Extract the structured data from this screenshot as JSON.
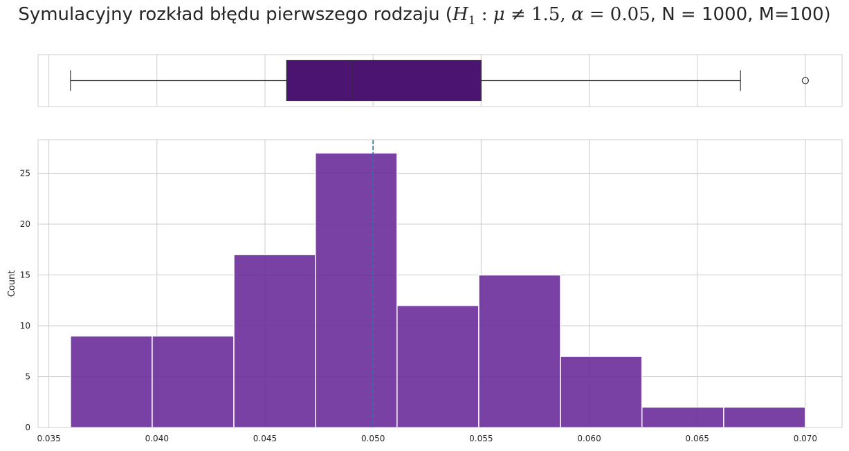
{
  "title": {
    "prefix": "Symulacyjny rozkład błędu pierwszego rodzaju (",
    "h": "H",
    "h_sub": "1",
    "colon": " : ",
    "mu": "μ",
    "neq": " ≠ ",
    "mu0": "1.5",
    "sep": ",  ",
    "alpha": "α",
    "eq": " = ",
    "alpha_val": "0.05",
    "suffix": ", N = 1000, M=100)"
  },
  "colors": {
    "hist_fill": "#6a2c9a",
    "hist_fill_opacity": 0.9,
    "box_fill": "#4a1470",
    "grid": "#cccccc",
    "vline": "#1f77b4",
    "spine": "#cccccc"
  },
  "chart_data": [
    {
      "type": "box",
      "orientation": "horizontal",
      "whisker_low": 0.036,
      "q1": 0.046,
      "median": 0.049,
      "q3": 0.055,
      "whisker_high": 0.067,
      "outliers": [
        0.07
      ],
      "xlim": [
        0.0345,
        0.0717
      ],
      "grid": true
    },
    {
      "type": "histogram",
      "bin_edges": [
        0.036,
        0.03978,
        0.04356,
        0.04733,
        0.05111,
        0.05489,
        0.05867,
        0.06244,
        0.06622,
        0.07
      ],
      "counts": [
        9,
        9,
        17,
        27,
        12,
        15,
        7,
        2,
        2
      ],
      "ylabel": "Count",
      "xlabel": "",
      "xlim": [
        0.0345,
        0.0717
      ],
      "ylim": [
        0,
        28.3
      ],
      "xticks": [
        "0.035",
        "0.040",
        "0.045",
        "0.050",
        "0.055",
        "0.060",
        "0.065",
        "0.070"
      ],
      "yticks": [
        "0",
        "5",
        "10",
        "15",
        "20",
        "25"
      ],
      "reference_line": {
        "x": 0.05,
        "style": "dashed"
      },
      "grid": true
    }
  ]
}
